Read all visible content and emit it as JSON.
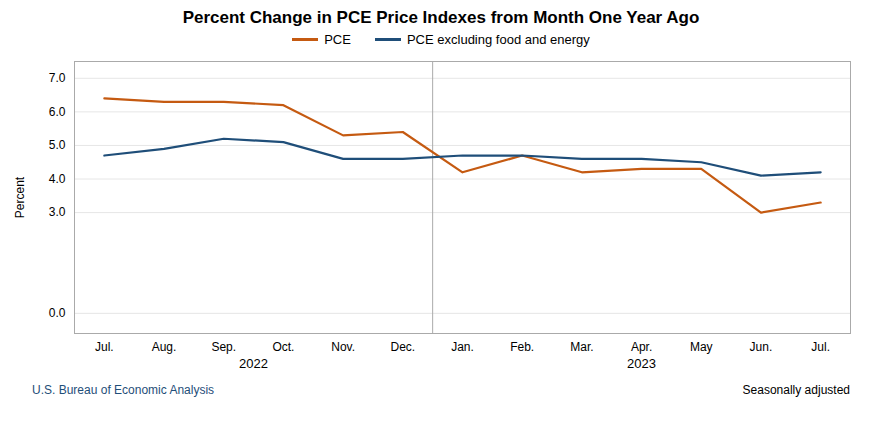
{
  "chart_data": {
    "type": "line",
    "title": "Percent Change in PCE Price Indexes from Month One Year Ago",
    "ylabel": "Percent",
    "categories": [
      "Jul.",
      "Aug.",
      "Sep.",
      "Oct.",
      "Nov.",
      "Dec.",
      "Jan.",
      "Feb.",
      "Mar.",
      "Apr.",
      "May",
      "Jun.",
      "Jul."
    ],
    "series": [
      {
        "name": "PCE",
        "color": "#C55A11",
        "values": [
          6.4,
          6.3,
          6.3,
          6.2,
          5.3,
          5.4,
          4.2,
          4.7,
          4.2,
          4.3,
          4.3,
          3.0,
          3.3
        ]
      },
      {
        "name": "PCE excluding food and energy",
        "color": "#1F4E79",
        "values": [
          4.7,
          4.9,
          5.2,
          5.1,
          4.6,
          4.6,
          4.7,
          4.7,
          4.6,
          4.6,
          4.5,
          4.1,
          4.2
        ]
      }
    ],
    "ylim": [
      -0.6,
      7.5
    ],
    "yticks": [
      {
        "value": 0.0,
        "label": "0.0"
      },
      {
        "value": 3.0,
        "label": "3.0"
      },
      {
        "value": 4.0,
        "label": "4.0"
      },
      {
        "value": 5.0,
        "label": "5.0"
      },
      {
        "value": 6.0,
        "label": "6.0"
      },
      {
        "value": 7.0,
        "label": "7.0"
      }
    ],
    "grid": true,
    "legend": "top",
    "annotations": [
      {
        "text": "2022",
        "categories": [
          "Jul.",
          "Aug.",
          "Sep.",
          "Oct.",
          "Nov.",
          "Dec."
        ]
      },
      {
        "text": "2023",
        "categories": [
          "Jan.",
          "Feb.",
          "Mar.",
          "Apr.",
          "May",
          "Jun.",
          "Jul."
        ]
      }
    ],
    "footer": [
      {
        "text": "U.S. Bureau of Economic Analysis",
        "color": "#1F4E79"
      },
      {
        "text": "Seasonally adjusted",
        "color": "#000000"
      }
    ]
  }
}
